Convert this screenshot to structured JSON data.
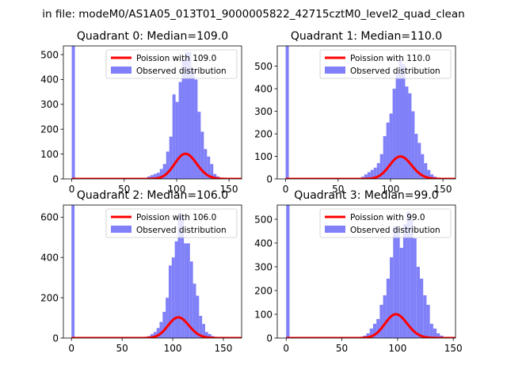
{
  "suptitle": "in file: modeM0/AS1A05_013T01_9000005822_42715cztM0_level2_quad_clean",
  "colors": {
    "hist": "#8080f8",
    "fit": "#ff0000"
  },
  "chart_data": [
    {
      "type": "bar",
      "title": "Quadrant 0: Median=109.0",
      "xlim": [
        -8,
        162
      ],
      "ylim": [
        0,
        535
      ],
      "xticks": [
        0,
        50,
        100,
        150
      ],
      "yticks": [
        0,
        100,
        200,
        300,
        400,
        500
      ],
      "legend": {
        "placement": "top-right",
        "entries": [
          "Poission with 109.0",
          "Observed distribution"
        ]
      },
      "mu": 109,
      "fit_scale": 2650,
      "hist": {
        "bin_edges": [
          0,
          3,
          6,
          9,
          12,
          15,
          18,
          21,
          24,
          27,
          30,
          33,
          36,
          39,
          42,
          45,
          48,
          51,
          54,
          57,
          60,
          63,
          66,
          69,
          72,
          75,
          78,
          81,
          84,
          87,
          90,
          93,
          96,
          99,
          102,
          105,
          108,
          111,
          114,
          117,
          120,
          123,
          126,
          129,
          132,
          135,
          138,
          141,
          144,
          147,
          150,
          153,
          156
        ],
        "counts": [
          535,
          0,
          0,
          0,
          0,
          0,
          0,
          0,
          0,
          0,
          0,
          0,
          0,
          0,
          0,
          0,
          0,
          0,
          0,
          0,
          0,
          0,
          2,
          3,
          10,
          15,
          20,
          25,
          40,
          60,
          110,
          170,
          340,
          310,
          390,
          480,
          510,
          510,
          440,
          400,
          270,
          190,
          120,
          90,
          60,
          20,
          10,
          5,
          3,
          2,
          0,
          0
        ]
      },
      "fit_label": "Poission with 109.0",
      "hist_label": "Observed distribution"
    },
    {
      "type": "bar",
      "title": "Quadrant 1: Median=110.0",
      "xlim": [
        -8,
        162
      ],
      "ylim": [
        0,
        590
      ],
      "xticks": [
        0,
        50,
        100,
        150
      ],
      "yticks": [
        0,
        100,
        200,
        300,
        400,
        500
      ],
      "legend": {
        "placement": "top-right",
        "entries": [
          "Poission with 110.0",
          "Observed distribution"
        ]
      },
      "mu": 110,
      "fit_scale": 2620,
      "hist": {
        "bin_edges": [
          0,
          3,
          6,
          9,
          12,
          15,
          18,
          21,
          24,
          27,
          30,
          33,
          36,
          39,
          42,
          45,
          48,
          51,
          54,
          57,
          60,
          63,
          66,
          69,
          72,
          75,
          78,
          81,
          84,
          87,
          90,
          93,
          96,
          99,
          102,
          105,
          108,
          111,
          114,
          117,
          120,
          123,
          126,
          129,
          132,
          135,
          138,
          141,
          144,
          147,
          150,
          153,
          156
        ],
        "counts": [
          590,
          0,
          0,
          0,
          0,
          0,
          0,
          0,
          0,
          0,
          0,
          0,
          0,
          0,
          0,
          0,
          0,
          0,
          0,
          0,
          0,
          0,
          0,
          5,
          10,
          20,
          30,
          40,
          50,
          70,
          110,
          190,
          250,
          290,
          400,
          470,
          530,
          510,
          410,
          380,
          300,
          200,
          160,
          110,
          70,
          40,
          20,
          10,
          5,
          0,
          0,
          0
        ]
      },
      "fit_label": "Poission with 110.0",
      "hist_label": "Observed distribution"
    },
    {
      "type": "bar",
      "title": "Quadrant 2: Median=106.0",
      "xlim": [
        -8,
        168
      ],
      "ylim": [
        0,
        660
      ],
      "xticks": [
        0,
        50,
        100,
        150
      ],
      "yticks": [
        0,
        200,
        400,
        600
      ],
      "legend": {
        "placement": "top-right",
        "entries": [
          "Poission with 106.0",
          "Observed distribution"
        ]
      },
      "mu": 106,
      "fit_scale": 2650,
      "hist": {
        "bin_edges": [
          0,
          3,
          6,
          9,
          12,
          15,
          18,
          21,
          24,
          27,
          30,
          33,
          36,
          39,
          42,
          45,
          48,
          51,
          54,
          57,
          60,
          63,
          66,
          69,
          72,
          75,
          78,
          81,
          84,
          87,
          90,
          93,
          96,
          99,
          102,
          105,
          108,
          111,
          114,
          117,
          120,
          123,
          126,
          129,
          132,
          135,
          138,
          141,
          144,
          147,
          150,
          153,
          156,
          159
        ],
        "counts": [
          660,
          0,
          0,
          0,
          0,
          0,
          0,
          0,
          0,
          0,
          0,
          0,
          0,
          0,
          0,
          0,
          0,
          0,
          0,
          0,
          0,
          0,
          2,
          3,
          5,
          10,
          20,
          30,
          50,
          80,
          130,
          200,
          360,
          400,
          480,
          620,
          610,
          470,
          470,
          380,
          270,
          210,
          110,
          70,
          30,
          20,
          10,
          5,
          3,
          2,
          0,
          0,
          0
        ]
      },
      "fit_label": "Poission with 106.0",
      "hist_label": "Observed distribution"
    },
    {
      "type": "bar",
      "title": "Quadrant 3: Median=99.0",
      "xlim": [
        -8,
        152
      ],
      "ylim": [
        0,
        560
      ],
      "xticks": [
        0,
        50,
        100,
        150
      ],
      "yticks": [
        0,
        100,
        200,
        300,
        400,
        500
      ],
      "legend": {
        "placement": "top-right",
        "entries": [
          "Poission with 99.0",
          "Observed distribution"
        ]
      },
      "mu": 99,
      "fit_scale": 2500,
      "hist": {
        "bin_edges": [
          0,
          3,
          6,
          9,
          12,
          15,
          18,
          21,
          24,
          27,
          30,
          33,
          36,
          39,
          42,
          45,
          48,
          51,
          54,
          57,
          60,
          63,
          66,
          69,
          72,
          75,
          78,
          81,
          84,
          87,
          90,
          93,
          96,
          99,
          102,
          105,
          108,
          111,
          114,
          117,
          120,
          123,
          126,
          129,
          132,
          135,
          138,
          141,
          144,
          147
        ],
        "counts": [
          560,
          0,
          0,
          0,
          0,
          0,
          0,
          0,
          0,
          0,
          0,
          0,
          0,
          0,
          0,
          0,
          0,
          0,
          0,
          0,
          0,
          0,
          5,
          10,
          20,
          40,
          60,
          80,
          140,
          180,
          250,
          340,
          470,
          470,
          380,
          480,
          530,
          500,
          420,
          300,
          250,
          180,
          140,
          60,
          40,
          20,
          10,
          5,
          3
        ]
      },
      "fit_label": "Poission with 99.0",
      "hist_label": "Observed distribution"
    }
  ]
}
